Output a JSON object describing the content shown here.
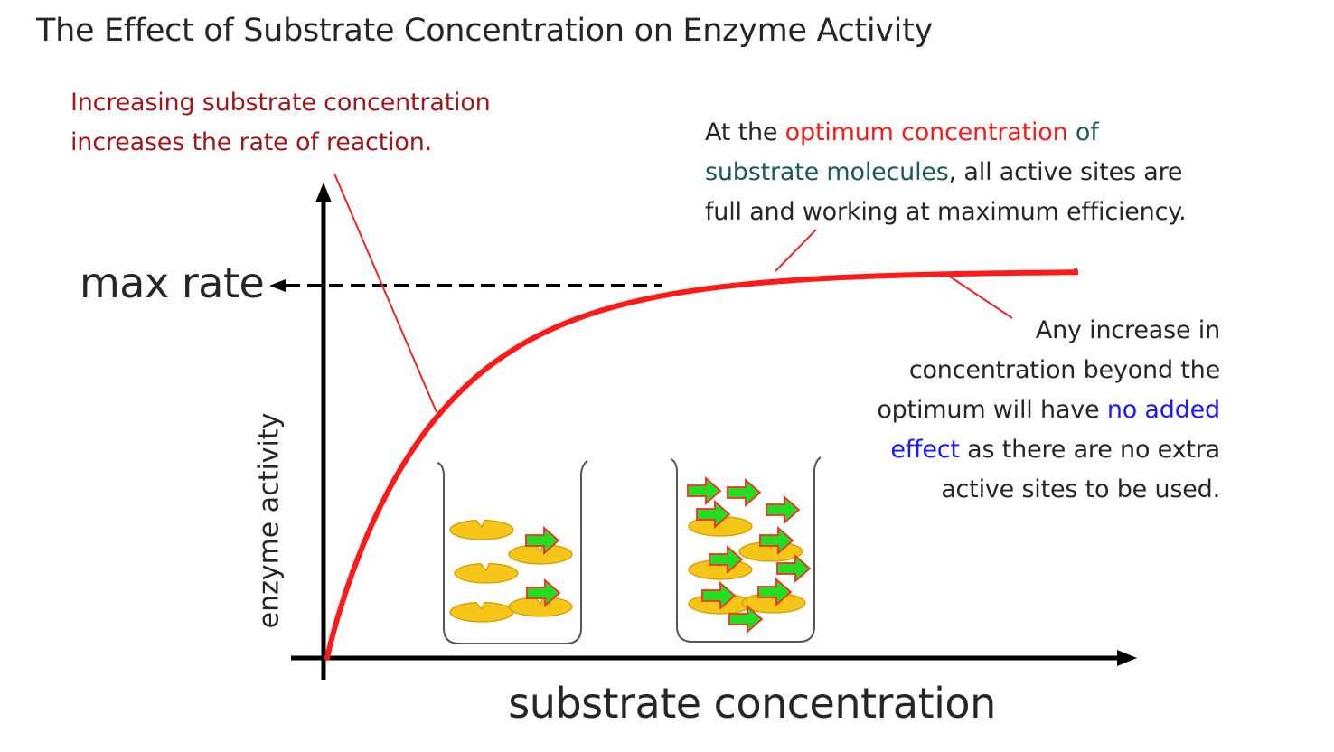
{
  "title": "The Effect of Substrate Concentration on Enzyme Activity",
  "annotations": {
    "increasing": {
      "line1": "Increasing substrate concentration",
      "line2": "increases the rate of reaction."
    },
    "optimum": {
      "part1": "At the ",
      "highlight_red": "optimum concentration",
      "part2": " of",
      "highlight_teal": "substrate molecules",
      "part3": ", all active sites are",
      "line3": "full and working at maximum efficiency."
    },
    "beyond": {
      "line1": "Any increase in",
      "line2": "concentration beyond the",
      "line3_plain": "optimum will have ",
      "line3_blue": "no added",
      "line4_blue": "effect",
      "line4_plain": " as there are no extra",
      "line5": "active sites to be used."
    }
  },
  "max_rate_label": "max rate",
  "chart_data": {
    "type": "line",
    "xlabel": "substrate concentration",
    "ylabel": "enzyme activity",
    "curve_shape": "saturation curve rising steeply then levelling off at max rate",
    "plateau_label": "max rate"
  },
  "colors": {
    "curve": "#ff1a1a",
    "pointer_line": "#e8292b",
    "axis": "#000000",
    "enzyme": "#f5c518",
    "substrate": "#22dd22"
  },
  "icons": [
    "beaker-low-substrate-icon",
    "beaker-high-substrate-icon",
    "enzyme-icon",
    "substrate-arrow-icon"
  ]
}
